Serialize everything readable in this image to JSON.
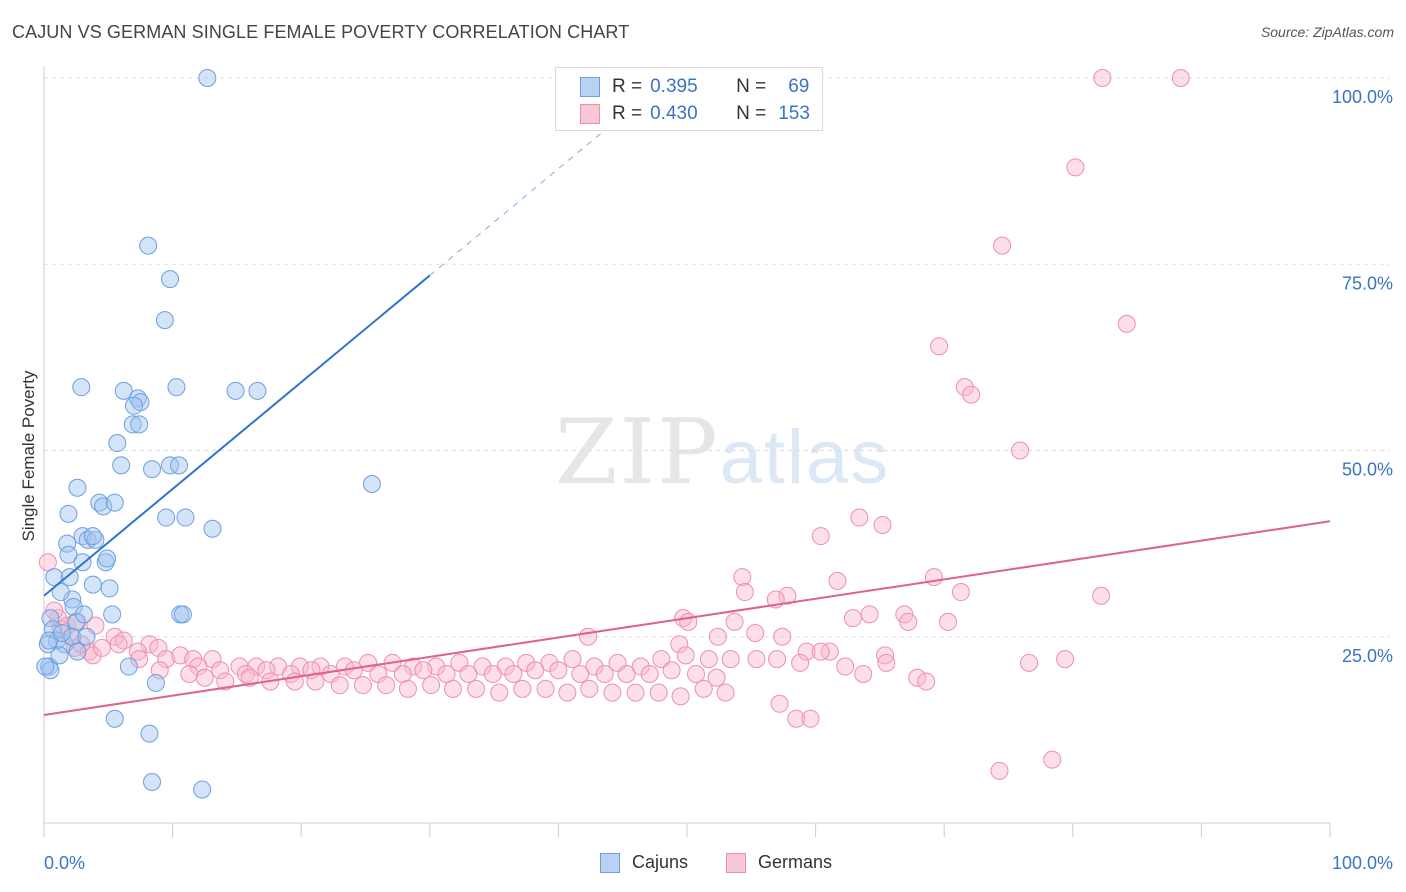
{
  "title": "CAJUN VS GERMAN SINGLE FEMALE POVERTY CORRELATION CHART",
  "source": "Source: ZipAtlas.com",
  "watermark": {
    "zip": "ZIP",
    "atlas": "atlas"
  },
  "colors": {
    "cajun_fill": "rgba(160,196,240,0.45)",
    "cajun_stroke": "#6d9fe0",
    "cajun_line": "#2f74d0",
    "german_fill": "rgba(248,184,204,0.45)",
    "german_stroke": "#ef8fae",
    "german_line": "#e0608e",
    "axis_label": "#3a74c4",
    "grid": "#dddddd"
  },
  "legend": {
    "rows": [
      {
        "r_label": "R =",
        "r_value": "0.395",
        "n_label": "N =",
        "n_value": "69"
      },
      {
        "r_label": "R =",
        "r_value": "0.430",
        "n_label": "N =",
        "n_value": "153"
      }
    ]
  },
  "bottom_legend": [
    "Cajuns",
    "Germans"
  ],
  "chart_data": {
    "type": "scatter",
    "title": "CAJUN VS GERMAN SINGLE FEMALE POVERTY CORRELATION CHART",
    "xlabel": "",
    "ylabel": "Single Female Poverty",
    "xlim": [
      0,
      100
    ],
    "ylim": [
      0,
      100
    ],
    "x_tick_labels": [
      "0.0%",
      "100.0%"
    ],
    "y_tick_labels": [
      "25.0%",
      "50.0%",
      "75.0%",
      "100.0%"
    ],
    "y_ticks": [
      25,
      50,
      75,
      100
    ],
    "grid": true,
    "legend_position": "top-center",
    "series": [
      {
        "name": "Cajuns",
        "r": 0.395,
        "n": 69,
        "trendline": {
          "x0": 0,
          "y0": 30.5,
          "x1": 30,
          "y1": 73.5,
          "dashed_to_x": 46
        },
        "points": [
          [
            12.7,
            100
          ],
          [
            8.1,
            77.5
          ],
          [
            9.8,
            73
          ],
          [
            9.4,
            67.5
          ],
          [
            2.9,
            58.5
          ],
          [
            6.2,
            58
          ],
          [
            10.3,
            58.5
          ],
          [
            14.9,
            58
          ],
          [
            16.6,
            58
          ],
          [
            7.3,
            57
          ],
          [
            7.5,
            56.5
          ],
          [
            7.0,
            56
          ],
          [
            6.9,
            53.5
          ],
          [
            7.4,
            53.5
          ],
          [
            5.7,
            51
          ],
          [
            6.0,
            48
          ],
          [
            8.4,
            47.5
          ],
          [
            9.8,
            48
          ],
          [
            10.5,
            48
          ],
          [
            25.5,
            45.5
          ],
          [
            2.6,
            45
          ],
          [
            4.3,
            43
          ],
          [
            4.6,
            42.5
          ],
          [
            5.5,
            43
          ],
          [
            1.9,
            41.5
          ],
          [
            9.5,
            41
          ],
          [
            11.0,
            41
          ],
          [
            13.1,
            39.5
          ],
          [
            3.0,
            38.5
          ],
          [
            3.4,
            38
          ],
          [
            4.0,
            38
          ],
          [
            3.8,
            38.5
          ],
          [
            1.8,
            37.5
          ],
          [
            1.9,
            36
          ],
          [
            3.0,
            35
          ],
          [
            4.8,
            35
          ],
          [
            4.9,
            35.5
          ],
          [
            0.8,
            33
          ],
          [
            2.0,
            33
          ],
          [
            3.8,
            32
          ],
          [
            5.1,
            31.5
          ],
          [
            2.2,
            30
          ],
          [
            1.3,
            31
          ],
          [
            2.3,
            29
          ],
          [
            5.3,
            28
          ],
          [
            10.6,
            28
          ],
          [
            10.8,
            28
          ],
          [
            0.5,
            27.5
          ],
          [
            2.5,
            27
          ],
          [
            3.1,
            28
          ],
          [
            0.7,
            26
          ],
          [
            1.0,
            24.5
          ],
          [
            1.6,
            24
          ],
          [
            2.2,
            25
          ],
          [
            0.3,
            24
          ],
          [
            0.4,
            24.5
          ],
          [
            0.4,
            21
          ],
          [
            0.5,
            20.5
          ],
          [
            0.1,
            21
          ],
          [
            6.6,
            21
          ],
          [
            8.7,
            18.8
          ],
          [
            5.5,
            14
          ],
          [
            8.2,
            12
          ],
          [
            8.4,
            5.5
          ],
          [
            12.3,
            4.5
          ],
          [
            1.2,
            22.5
          ],
          [
            2.6,
            23
          ],
          [
            1.4,
            25.5
          ],
          [
            3.3,
            25
          ]
        ]
      },
      {
        "name": "Germans",
        "r": 0.43,
        "n": 153,
        "trendline": {
          "x0": 0,
          "y0": 14.5,
          "x1": 100,
          "y1": 40.5
        },
        "points": [
          [
            82.3,
            100
          ],
          [
            88.4,
            100
          ],
          [
            80.2,
            88
          ],
          [
            74.5,
            77.5
          ],
          [
            84.2,
            67
          ],
          [
            69.6,
            64
          ],
          [
            71.6,
            58.5
          ],
          [
            72.1,
            57.5
          ],
          [
            75.9,
            50
          ],
          [
            63.4,
            41
          ],
          [
            65.2,
            40
          ],
          [
            60.4,
            38.5
          ],
          [
            54.3,
            33
          ],
          [
            69.2,
            33
          ],
          [
            61.7,
            32.5
          ],
          [
            54.5,
            31
          ],
          [
            57.8,
            30.5
          ],
          [
            71.3,
            31
          ],
          [
            82.2,
            30.5
          ],
          [
            56.9,
            30
          ],
          [
            64.2,
            28
          ],
          [
            62.9,
            27.5
          ],
          [
            66.9,
            28
          ],
          [
            49.7,
            27.5
          ],
          [
            67.2,
            27
          ],
          [
            50.1,
            27
          ],
          [
            70.3,
            27
          ],
          [
            53.7,
            27
          ],
          [
            55.3,
            25.5
          ],
          [
            52.4,
            25
          ],
          [
            49.4,
            24
          ],
          [
            42.3,
            25
          ],
          [
            57.4,
            25
          ],
          [
            59.3,
            23
          ],
          [
            61.1,
            23
          ],
          [
            65.4,
            22.5
          ],
          [
            0.3,
            35
          ],
          [
            1.1,
            27.5
          ],
          [
            1.8,
            26.5
          ],
          [
            2.6,
            27
          ],
          [
            4.0,
            26.5
          ],
          [
            5.5,
            25
          ],
          [
            6.2,
            24.5
          ],
          [
            8.2,
            24
          ],
          [
            2.4,
            23.5
          ],
          [
            3.5,
            23
          ],
          [
            5.8,
            24
          ],
          [
            7.3,
            23
          ],
          [
            8.9,
            23.5
          ],
          [
            9.5,
            22
          ],
          [
            10.6,
            22.5
          ],
          [
            11.6,
            22
          ],
          [
            13.1,
            22
          ],
          [
            15.2,
            21
          ],
          [
            16.5,
            21
          ],
          [
            18.2,
            21
          ],
          [
            19.9,
            21
          ],
          [
            21.5,
            21
          ],
          [
            23.4,
            21
          ],
          [
            25.2,
            21.5
          ],
          [
            27.1,
            21.5
          ],
          [
            28.7,
            21
          ],
          [
            30.5,
            21
          ],
          [
            32.3,
            21.5
          ],
          [
            34.1,
            21
          ],
          [
            35.9,
            21
          ],
          [
            37.5,
            21.5
          ],
          [
            39.3,
            21.5
          ],
          [
            41.1,
            22
          ],
          [
            42.8,
            21
          ],
          [
            44.6,
            21.5
          ],
          [
            46.4,
            21
          ],
          [
            48.0,
            22
          ],
          [
            49.9,
            22.5
          ],
          [
            51.7,
            22
          ],
          [
            53.4,
            22
          ],
          [
            55.4,
            22
          ],
          [
            57.0,
            22
          ],
          [
            58.8,
            21.5
          ],
          [
            60.4,
            23
          ],
          [
            12.0,
            21
          ],
          [
            13.7,
            20.5
          ],
          [
            15.7,
            20
          ],
          [
            17.3,
            20.5
          ],
          [
            19.2,
            20
          ],
          [
            20.8,
            20.5
          ],
          [
            22.3,
            20
          ],
          [
            24.1,
            20.5
          ],
          [
            26.0,
            20
          ],
          [
            27.9,
            20
          ],
          [
            29.5,
            20.5
          ],
          [
            31.3,
            20
          ],
          [
            33.0,
            20
          ],
          [
            34.9,
            20
          ],
          [
            36.5,
            20
          ],
          [
            38.2,
            20.5
          ],
          [
            40.0,
            20.5
          ],
          [
            41.7,
            20
          ],
          [
            43.6,
            20
          ],
          [
            45.3,
            20
          ],
          [
            47.1,
            20
          ],
          [
            48.8,
            20.5
          ],
          [
            50.7,
            20
          ],
          [
            52.3,
            19.5
          ],
          [
            11.3,
            20
          ],
          [
            12.5,
            19.5
          ],
          [
            14.1,
            19
          ],
          [
            16.0,
            19.5
          ],
          [
            17.6,
            19
          ],
          [
            19.5,
            19
          ],
          [
            21.1,
            19
          ],
          [
            23.0,
            18.5
          ],
          [
            24.8,
            18.5
          ],
          [
            26.6,
            18.5
          ],
          [
            28.3,
            18
          ],
          [
            30.1,
            18.5
          ],
          [
            31.8,
            18
          ],
          [
            33.6,
            18
          ],
          [
            35.4,
            17.5
          ],
          [
            37.2,
            18
          ],
          [
            39.0,
            18
          ],
          [
            40.7,
            17.5
          ],
          [
            42.4,
            18
          ],
          [
            44.2,
            17.5
          ],
          [
            46.0,
            17.5
          ],
          [
            47.8,
            17.5
          ],
          [
            49.5,
            17
          ],
          [
            51.3,
            18
          ],
          [
            53.0,
            17.5
          ],
          [
            57.2,
            16
          ],
          [
            58.5,
            14
          ],
          [
            59.6,
            14
          ],
          [
            62.3,
            21
          ],
          [
            63.7,
            20
          ],
          [
            65.5,
            21.5
          ],
          [
            67.9,
            19.5
          ],
          [
            68.6,
            19
          ],
          [
            7.4,
            22
          ],
          [
            3.8,
            22.5
          ],
          [
            9.0,
            20.5
          ],
          [
            1.3,
            26
          ],
          [
            0.8,
            28.5
          ],
          [
            2.1,
            25
          ],
          [
            2.9,
            24
          ],
          [
            4.5,
            23.5
          ],
          [
            78.4,
            8.5
          ],
          [
            74.3,
            7
          ],
          [
            76.6,
            21.5
          ],
          [
            79.4,
            22
          ]
        ]
      }
    ]
  }
}
